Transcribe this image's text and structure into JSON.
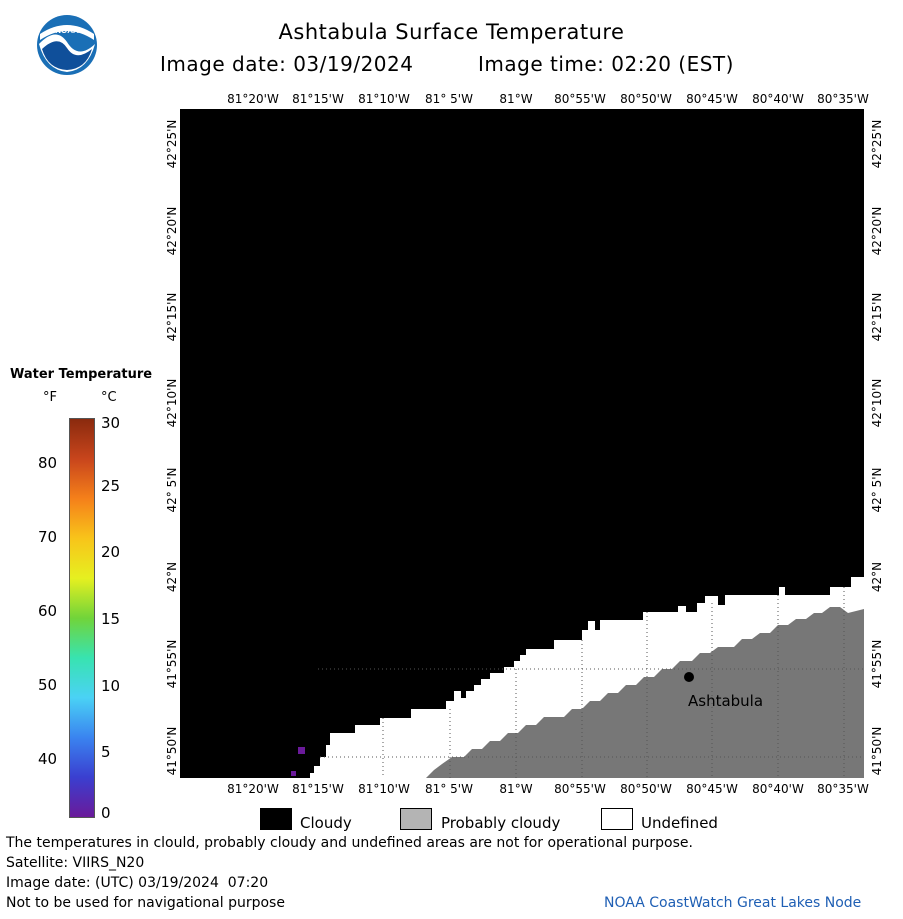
{
  "header": {
    "title": "Ashtabula Surface Temperature",
    "image_date_label": "Image date: 03/19/2024",
    "image_time_label": "Image time: 02:20 (EST)"
  },
  "logo": {
    "text": "NOAA",
    "colors": {
      "outer": "#1a6fb6",
      "inner": "#ffffff",
      "bird": "#0f4f9a"
    }
  },
  "map": {
    "lon_ticks": [
      "81°20'W",
      "81°15'W",
      "81°10'W",
      "81° 5'W",
      "81°W",
      "80°55'W",
      "80°50'W",
      "80°45'W",
      "80°40'W",
      "80°35'W"
    ],
    "lat_ticks": [
      "42°25'N",
      "42°20'N",
      "42°15'N",
      "42°10'N",
      "42° 5'N",
      "42°N",
      "41°55'N",
      "41°50'N"
    ],
    "city_label": "Ashtabula",
    "colors": {
      "cloudy": "#000000",
      "probably_cloudy": "#777777",
      "undefined": "#ffffff"
    }
  },
  "legend": {
    "title": "Water Temperature",
    "unit_f": "°F",
    "unit_c": "°C",
    "f_ticks": [
      "80",
      "70",
      "60",
      "50",
      "40"
    ],
    "c_ticks": [
      "30",
      "25",
      "20",
      "15",
      "10",
      "5",
      "0"
    ],
    "gradient_stops": [
      "#8a2a0e",
      "#c8451c",
      "#f5801a",
      "#f8c41a",
      "#e6f020",
      "#71d43a",
      "#38e3b0",
      "#4ad2f5",
      "#3a84f0",
      "#3a3fd0",
      "#6a1a9a"
    ]
  },
  "key": {
    "items": [
      {
        "label": "Cloudy",
        "color": "#000000"
      },
      {
        "label": "Probably cloudy",
        "color": "#b4b4b4"
      },
      {
        "label": "Undefined",
        "color": "#ffffff"
      }
    ]
  },
  "footer": {
    "disclaimer": "The temperatures in clould, probably cloudy and undefined areas are not for operational purpose.",
    "satellite": "Satellite: VIIRS_N20",
    "utc_date": "Image date: (UTC) 03/19/2024  07:20",
    "nav_warning": "Not to be used for navigational purpose",
    "credit": "NOAA CoastWatch Great Lakes Node",
    "credit_color": "#1f5fb4"
  }
}
